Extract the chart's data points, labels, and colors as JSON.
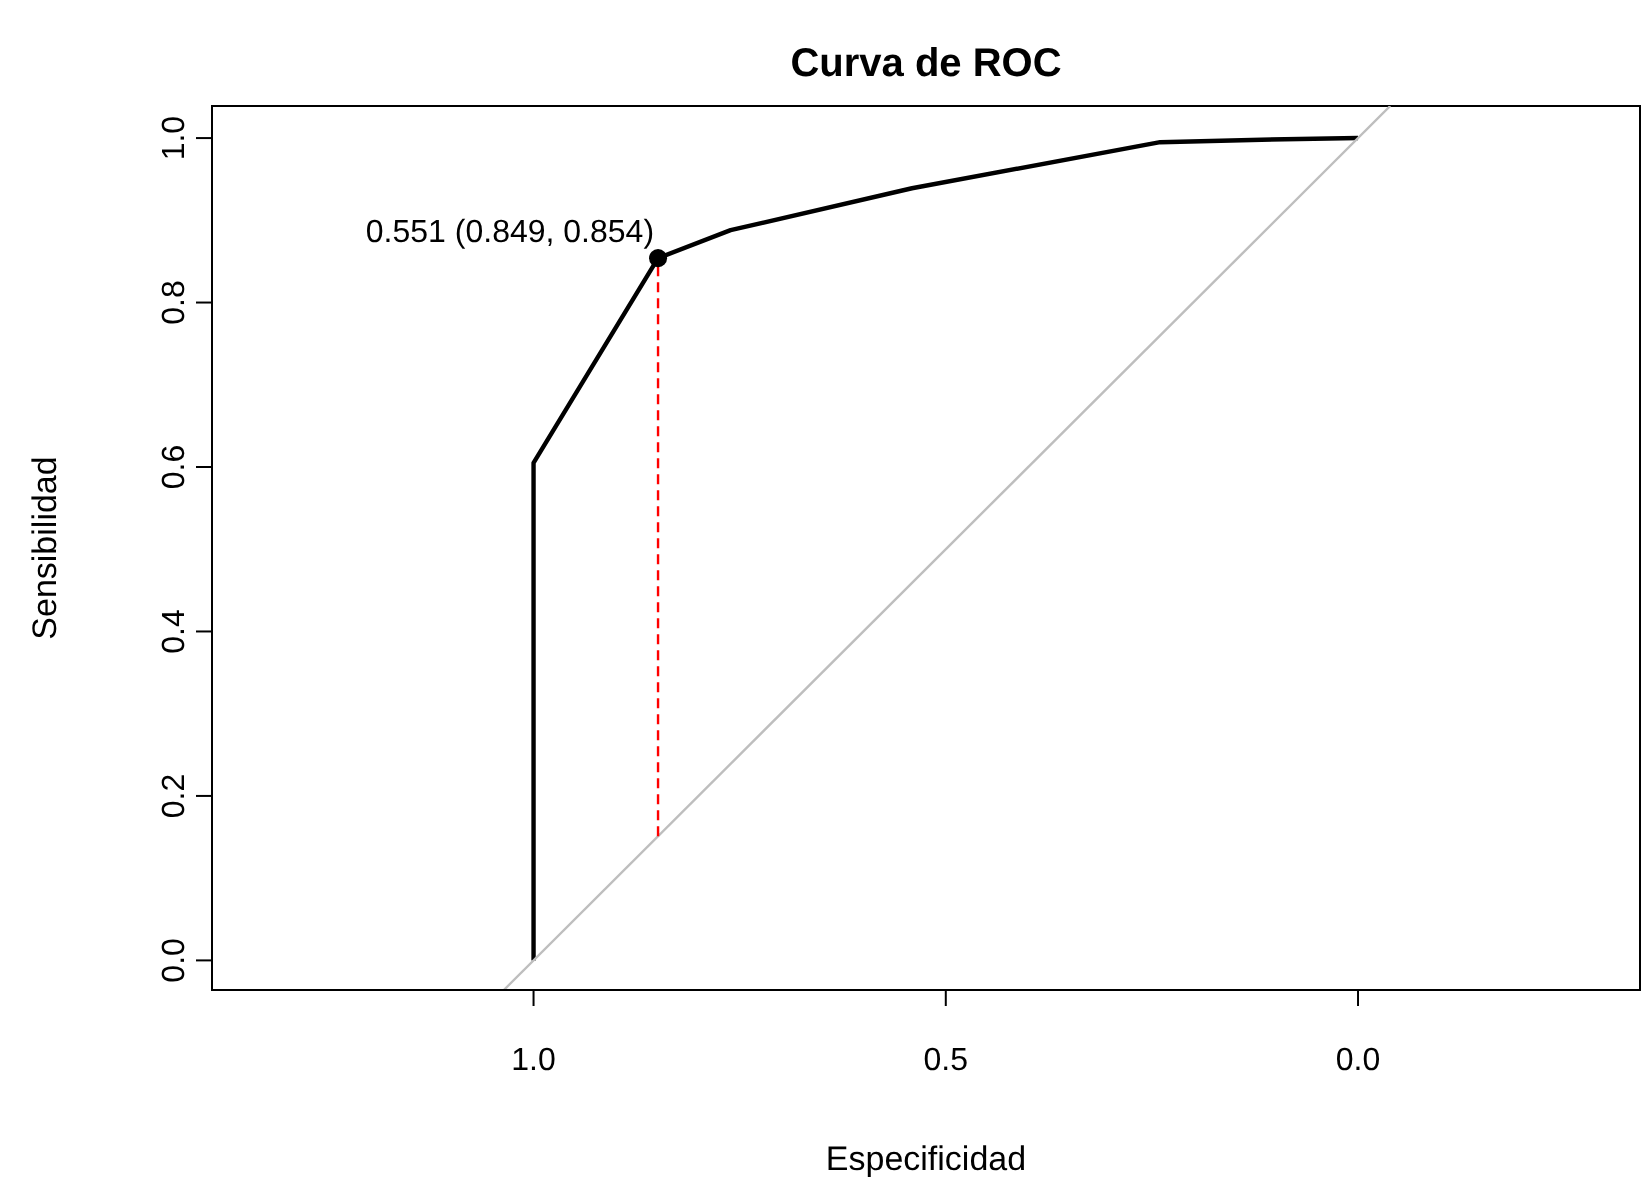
{
  "chart_data": {
    "type": "line",
    "title": "Curva de ROC",
    "xlabel": "Especificidad",
    "ylabel": "Sensibilidad",
    "xlim": [
      1.39,
      -0.342
    ],
    "ylim": [
      -0.036,
      1.039
    ],
    "xticks": [
      {
        "value": 1,
        "label": "1.0"
      },
      0.5,
      {
        "value": 0,
        "label": "0.0"
      }
    ],
    "yticks": [
      {
        "value": 0,
        "label": "0.0"
      },
      0.2,
      0.4,
      0.6,
      0.8,
      {
        "value": 1,
        "label": "1.0"
      }
    ],
    "grid": false,
    "series": [
      {
        "color": "#000000",
        "marker": "none",
        "line_style": "solid",
        "x": [
          1.0,
          1.0,
          0.849,
          0.761,
          0.541,
          0.24,
          0.117,
          0.0
        ],
        "values": [
          0.0,
          0.605,
          0.854,
          0.888,
          0.939,
          0.995,
          0.998,
          1.0
        ]
      },
      {
        "color": "#bebebe",
        "marker": "none",
        "line_style": "solid",
        "x": [
          1.036,
          -0.039
        ],
        "values": [
          -0.036,
          1.039
        ]
      },
      {
        "color": "#ff0000",
        "marker": "none",
        "line_style": "dashed",
        "x": [
          0.849,
          0.849
        ],
        "values": [
          0.151,
          0.854
        ]
      },
      {
        "type": "scatter",
        "color": "#000000",
        "marker": "circle",
        "x": [
          0.849
        ],
        "values": [
          0.854
        ]
      }
    ],
    "annotations": [
      {
        "text": "0.551 (0.849, 0.854)",
        "x": 0.849,
        "y": 0.854
      }
    ]
  }
}
